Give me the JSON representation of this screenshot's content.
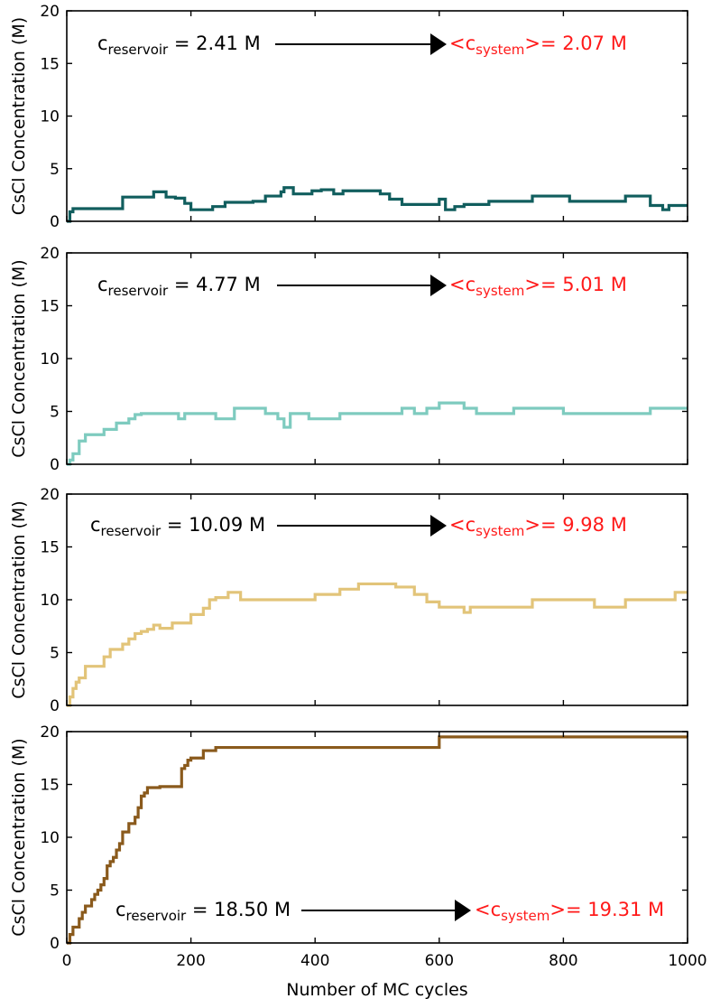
{
  "chart_data": [
    {
      "type": "line",
      "ylabel": "CsCl Concentration (M)",
      "xlim": [
        0,
        1000
      ],
      "ylim": [
        0,
        20
      ],
      "yticks": [
        0,
        5,
        10,
        15,
        20
      ],
      "xticks": [
        0,
        200,
        400,
        600,
        800,
        1000
      ],
      "show_xticklabels": false,
      "series": [
        {
          "color": "#115e5e",
          "x": [
            0,
            5,
            10,
            70,
            90,
            140,
            160,
            175,
            190,
            200,
            235,
            255,
            300,
            320,
            345,
            350,
            365,
            395,
            410,
            430,
            445,
            505,
            520,
            540,
            600,
            610,
            625,
            640,
            680,
            700,
            750,
            770,
            810,
            830,
            850,
            900,
            940,
            960,
            970,
            1000
          ],
          "y": [
            0,
            0.9,
            1.2,
            1.2,
            2.3,
            2.8,
            2.3,
            2.2,
            1.7,
            1.1,
            1.4,
            1.8,
            1.9,
            2.4,
            2.8,
            3.2,
            2.6,
            2.9,
            3.0,
            2.6,
            2.9,
            2.6,
            2.1,
            1.6,
            2.1,
            1.1,
            1.4,
            1.6,
            1.9,
            1.9,
            2.4,
            2.4,
            1.9,
            1.9,
            1.9,
            2.4,
            1.5,
            1.1,
            1.5,
            1.5
          ]
        }
      ],
      "annotations": {
        "reservoir_main": "c",
        "reservoir_sub": "reservoir",
        "reservoir_value": " = 2.41 M",
        "system_prefix": "<c",
        "system_sub": "system",
        "system_value": ">= 2.07 M"
      }
    },
    {
      "type": "line",
      "ylabel": "CsCl Concentration (M)",
      "xlim": [
        0,
        1000
      ],
      "ylim": [
        0,
        20
      ],
      "yticks": [
        0,
        5,
        10,
        15,
        20
      ],
      "xticks": [
        0,
        200,
        400,
        600,
        800,
        1000
      ],
      "show_xticklabels": false,
      "series": [
        {
          "color": "#7ecbbf",
          "x": [
            0,
            5,
            10,
            20,
            30,
            60,
            80,
            100,
            110,
            120,
            180,
            190,
            200,
            240,
            270,
            290,
            320,
            335,
            340,
            350,
            360,
            390,
            420,
            440,
            450,
            470,
            510,
            540,
            560,
            580,
            600,
            620,
            640,
            660,
            680,
            720,
            760,
            800,
            850,
            900,
            940,
            960,
            1000
          ],
          "y": [
            0,
            0.4,
            1.0,
            2.2,
            2.8,
            3.3,
            3.9,
            4.3,
            4.7,
            4.8,
            4.3,
            4.8,
            4.8,
            4.3,
            5.3,
            5.3,
            4.8,
            4.8,
            4.3,
            3.5,
            4.8,
            4.3,
            4.3,
            4.8,
            4.8,
            4.8,
            4.8,
            5.3,
            4.8,
            5.3,
            5.8,
            5.8,
            5.3,
            4.8,
            4.8,
            5.3,
            5.3,
            4.8,
            4.8,
            4.8,
            5.3,
            5.3,
            5.3
          ]
        }
      ],
      "annotations": {
        "reservoir_main": "c",
        "reservoir_sub": "reservoir",
        "reservoir_value": " = 4.77 M",
        "system_prefix": "<c",
        "system_sub": "system",
        "system_value": ">= 5.01 M"
      }
    },
    {
      "type": "line",
      "ylabel": "CsCl Concentration (M)",
      "xlim": [
        0,
        1000
      ],
      "ylim": [
        0,
        20
      ],
      "yticks": [
        0,
        5,
        10,
        15,
        20
      ],
      "xticks": [
        0,
        200,
        400,
        600,
        800,
        1000
      ],
      "show_xticklabels": false,
      "series": [
        {
          "color": "#e2c479",
          "x": [
            0,
            5,
            10,
            15,
            20,
            30,
            60,
            70,
            90,
            100,
            110,
            120,
            130,
            140,
            150,
            170,
            200,
            220,
            230,
            240,
            260,
            280,
            300,
            400,
            440,
            470,
            530,
            560,
            580,
            600,
            640,
            650,
            670,
            700,
            750,
            800,
            850,
            900,
            940,
            980,
            1000
          ],
          "y": [
            0,
            0.8,
            1.6,
            2.2,
            2.6,
            3.7,
            4.6,
            5.3,
            5.8,
            6.3,
            6.8,
            7.0,
            7.2,
            7.6,
            7.3,
            7.8,
            8.6,
            9.2,
            10.0,
            10.2,
            10.7,
            10.0,
            10.0,
            10.5,
            11.0,
            11.5,
            11.2,
            10.5,
            9.8,
            9.3,
            8.8,
            9.3,
            9.3,
            9.3,
            10.0,
            10.0,
            9.3,
            10.0,
            10.0,
            10.7,
            10.7
          ]
        }
      ],
      "annotations": {
        "reservoir_main": "c",
        "reservoir_sub": "reservoir",
        "reservoir_value": " = 10.09 M",
        "system_prefix": "<c",
        "system_sub": "system",
        "system_value": ">= 9.98 M"
      }
    },
    {
      "type": "line",
      "xlabel": "Number of MC cycles",
      "ylabel": "CsCl Concentration (M)",
      "xlim": [
        0,
        1000
      ],
      "ylim": [
        0,
        20
      ],
      "yticks": [
        0,
        5,
        10,
        15,
        20
      ],
      "xticks": [
        0,
        200,
        400,
        600,
        800,
        1000
      ],
      "show_xticklabels": true,
      "series": [
        {
          "color": "#8a5a1c",
          "x": [
            0,
            5,
            10,
            20,
            25,
            30,
            40,
            45,
            50,
            55,
            60,
            65,
            70,
            75,
            80,
            85,
            90,
            100,
            110,
            115,
            120,
            125,
            130,
            150,
            170,
            185,
            190,
            195,
            200,
            220,
            240,
            300,
            400,
            500,
            580,
            600,
            650,
            700,
            800,
            900,
            1000
          ],
          "y": [
            0,
            0.8,
            1.5,
            2.3,
            2.9,
            3.5,
            4.1,
            4.6,
            5.0,
            5.5,
            6.1,
            7.3,
            7.7,
            8.1,
            8.8,
            9.4,
            10.5,
            11.3,
            11.9,
            12.8,
            13.9,
            14.2,
            14.7,
            14.8,
            14.8,
            16.5,
            16.8,
            17.3,
            17.5,
            18.2,
            18.5,
            18.5,
            18.5,
            18.5,
            18.5,
            19.5,
            19.5,
            19.5,
            19.5,
            19.5,
            19.5
          ]
        }
      ],
      "annotations": {
        "reservoir_main": "c",
        "reservoir_sub": "reservoir",
        "reservoir_value": " = 18.50 M",
        "system_prefix": "<c",
        "system_sub": "system",
        "system_value": ">= 19.31 M"
      }
    }
  ]
}
